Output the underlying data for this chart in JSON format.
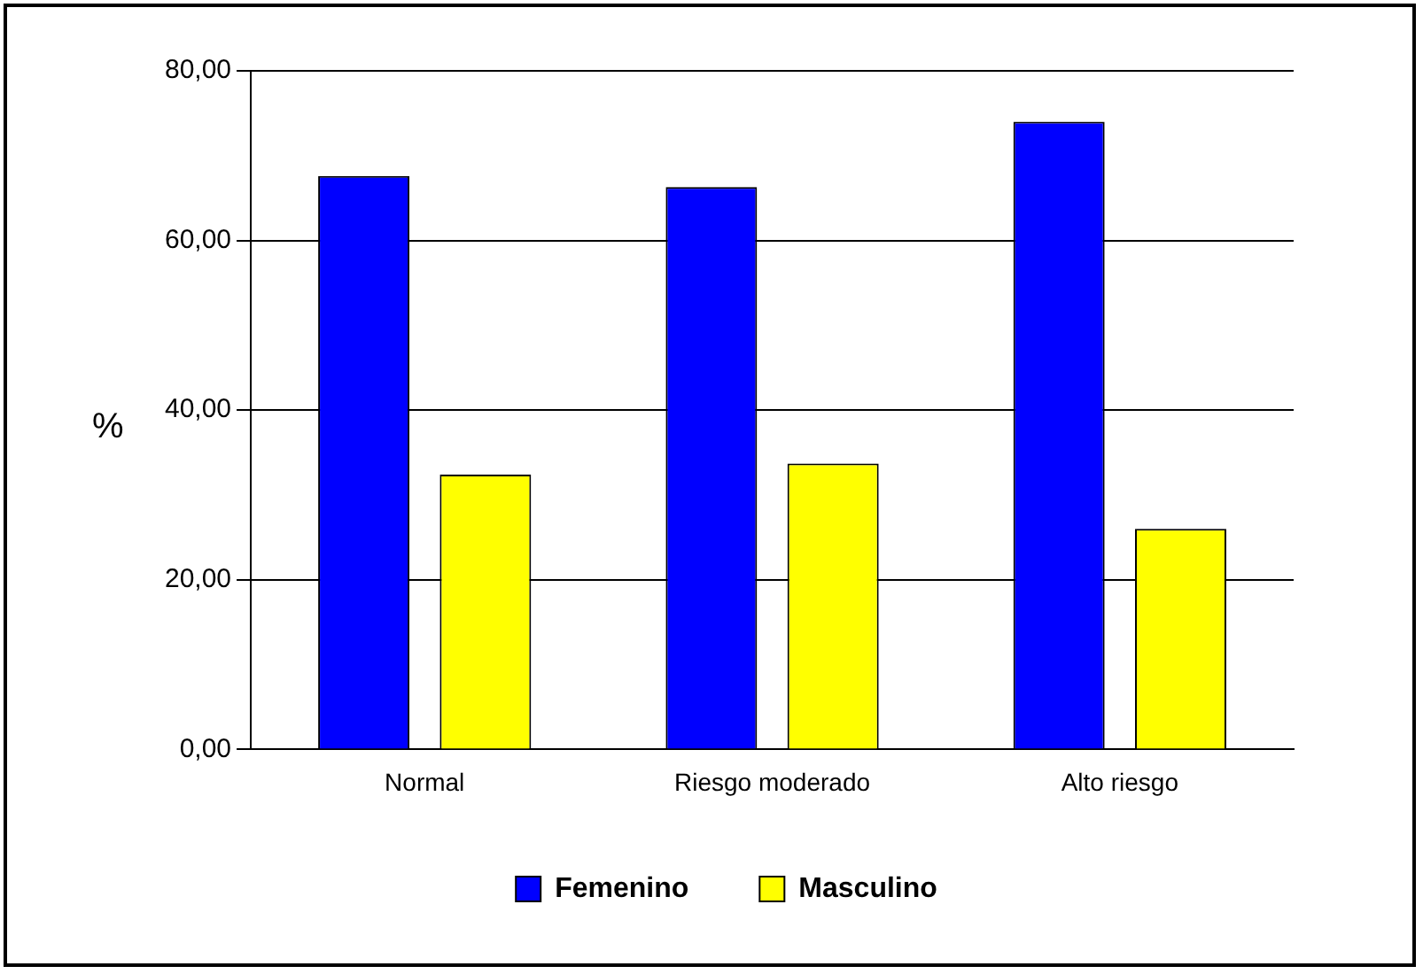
{
  "chart_data": {
    "type": "bar",
    "ylabel": "%",
    "categories": [
      "Normal",
      "Riesgo moderado",
      "Alto riesgo"
    ],
    "series": [
      {
        "name": "Femenino",
        "color": "#0000ff",
        "values": [
          67.6,
          66.3,
          74.0
        ]
      },
      {
        "name": "Masculino",
        "color": "#ffff00",
        "values": [
          32.4,
          33.7,
          26.0
        ]
      }
    ],
    "ylim": [
      0,
      80
    ],
    "yticks": [
      {
        "value": 0,
        "label": "0,00"
      },
      {
        "value": 20,
        "label": "20,00"
      },
      {
        "value": 40,
        "label": "40,00"
      },
      {
        "value": 60,
        "label": "60,00"
      },
      {
        "value": 80,
        "label": "80,00"
      }
    ],
    "grid": "y",
    "legend": "bottom"
  }
}
